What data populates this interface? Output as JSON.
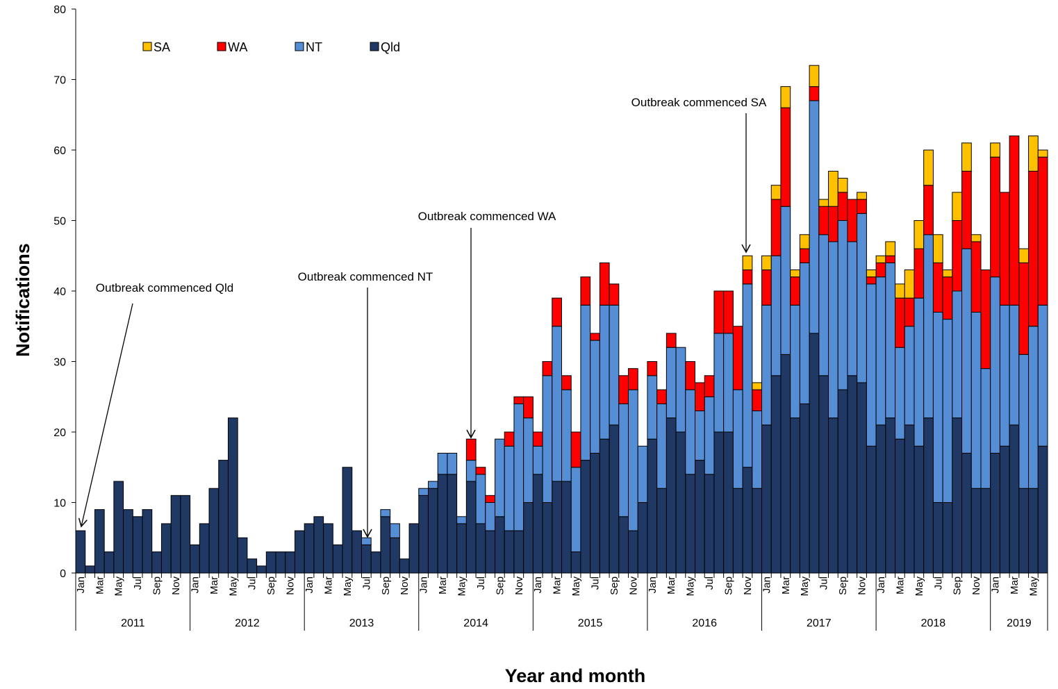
{
  "chart_data": {
    "type": "bar",
    "stacked": true,
    "ylabel": "Notifications",
    "xlabel": "Year and month",
    "ylim": [
      0,
      80
    ],
    "yticks": [
      "0",
      "10",
      "20",
      "30",
      "40",
      "50",
      "60",
      "70",
      "80"
    ],
    "years": [
      "2011",
      "2012",
      "2013",
      "2014",
      "2015",
      "2016",
      "2017",
      "2018",
      "2019"
    ],
    "month_labels": [
      "Jan",
      "Mar",
      "May",
      "Jul",
      "Sep",
      "Nov"
    ],
    "legend": [
      {
        "key": "SA",
        "label": "SA",
        "color": "#ffc000"
      },
      {
        "key": "WA",
        "label": "WA",
        "color": "#ff0000"
      },
      {
        "key": "NT",
        "label": "NT",
        "color": "#558ed5"
      },
      {
        "key": "Qld",
        "label": "Qld",
        "color": "#1f3864"
      }
    ],
    "series": [
      {
        "name": "Qld",
        "values": [
          6,
          1,
          9,
          3,
          13,
          9,
          8,
          9,
          3,
          7,
          11,
          11,
          4,
          7,
          12,
          16,
          22,
          5,
          2,
          1,
          3,
          3,
          3,
          6,
          7,
          8,
          7,
          4,
          15,
          6,
          4,
          3,
          8,
          5,
          2,
          7,
          11,
          12,
          14,
          14,
          7,
          13,
          7,
          6,
          8,
          6,
          6,
          10,
          14,
          10,
          13,
          13,
          3,
          16,
          17,
          19,
          21,
          8,
          6,
          10,
          19,
          12,
          22,
          20,
          14,
          16,
          14,
          20,
          20,
          12,
          15,
          12,
          21,
          28,
          31,
          22,
          24,
          34,
          28,
          22,
          26,
          28,
          27,
          18,
          21,
          22,
          19,
          21,
          18,
          22,
          10,
          10,
          22,
          17,
          12,
          12,
          17,
          18,
          21,
          12,
          12,
          18
        ]
      },
      {
        "name": "NT",
        "values": [
          0,
          0,
          0,
          0,
          0,
          0,
          0,
          0,
          0,
          0,
          0,
          0,
          0,
          0,
          0,
          0,
          0,
          0,
          0,
          0,
          0,
          0,
          0,
          0,
          0,
          0,
          0,
          0,
          0,
          0,
          1,
          0,
          1,
          2,
          0,
          0,
          1,
          1,
          3,
          3,
          1,
          3,
          7,
          4,
          11,
          12,
          18,
          12,
          4,
          18,
          22,
          13,
          12,
          22,
          16,
          19,
          17,
          16,
          20,
          8,
          9,
          12,
          10,
          12,
          12,
          7,
          11,
          14,
          14,
          14,
          26,
          11,
          17,
          17,
          21,
          16,
          20,
          33,
          20,
          25,
          24,
          19,
          24,
          23,
          21,
          22,
          13,
          14,
          21,
          26,
          27,
          26,
          18,
          29,
          25,
          17,
          25,
          20,
          17,
          19,
          23,
          20
        ]
      },
      {
        "name": "WA",
        "values": [
          0,
          0,
          0,
          0,
          0,
          0,
          0,
          0,
          0,
          0,
          0,
          0,
          0,
          0,
          0,
          0,
          0,
          0,
          0,
          0,
          0,
          0,
          0,
          0,
          0,
          0,
          0,
          0,
          0,
          0,
          0,
          0,
          0,
          0,
          0,
          0,
          0,
          0,
          0,
          0,
          0,
          3,
          1,
          1,
          0,
          2,
          1,
          3,
          2,
          2,
          4,
          2,
          5,
          4,
          1,
          6,
          3,
          4,
          3,
          0,
          2,
          2,
          2,
          0,
          4,
          4,
          3,
          6,
          6,
          9,
          2,
          3,
          5,
          8,
          14,
          4,
          2,
          2,
          4,
          5,
          4,
          6,
          2,
          1,
          2,
          1,
          7,
          4,
          7,
          7,
          7,
          6,
          10,
          11,
          10,
          14,
          17,
          16,
          24,
          13,
          22,
          21
        ]
      },
      {
        "name": "SA",
        "values": [
          0,
          0,
          0,
          0,
          0,
          0,
          0,
          0,
          0,
          0,
          0,
          0,
          0,
          0,
          0,
          0,
          0,
          0,
          0,
          0,
          0,
          0,
          0,
          0,
          0,
          0,
          0,
          0,
          0,
          0,
          0,
          0,
          0,
          0,
          0,
          0,
          0,
          0,
          0,
          0,
          0,
          0,
          0,
          0,
          0,
          0,
          0,
          0,
          0,
          0,
          0,
          0,
          0,
          0,
          0,
          0,
          0,
          0,
          0,
          0,
          0,
          0,
          0,
          0,
          0,
          0,
          0,
          0,
          0,
          0,
          2,
          1,
          2,
          2,
          3,
          1,
          2,
          3,
          1,
          5,
          2,
          0,
          1,
          1,
          1,
          2,
          2,
          4,
          4,
          5,
          4,
          1,
          4,
          4,
          1,
          0,
          2,
          0,
          0,
          2,
          5,
          1
        ]
      }
    ],
    "annotations": [
      {
        "text": "Outbreak commenced Qld",
        "month_index": 0
      },
      {
        "text": "Outbreak commenced NT",
        "month_index": 30
      },
      {
        "text": "Outbreak commenced WA",
        "month_index": 41
      },
      {
        "text": "Outbreak commenced SA",
        "month_index": 70
      }
    ]
  }
}
